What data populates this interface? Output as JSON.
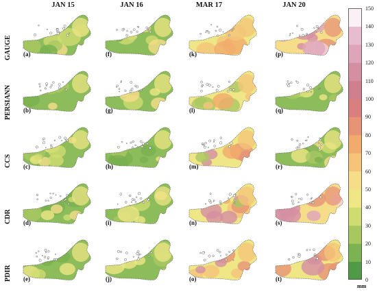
{
  "columns": [
    "JAN 15",
    "JAN 16",
    "MAR 17",
    "JAN 20"
  ],
  "rows": [
    "GAUGE",
    "PERSIANN",
    "CCS",
    "CDR",
    "PDIR"
  ],
  "panel_labels": [
    [
      "(a)",
      "(f)",
      "(k)",
      "(p)"
    ],
    [
      "(b)",
      "(g)",
      "(l)",
      "(q)"
    ],
    [
      "(c)",
      "(h)",
      "(m)",
      "(r)"
    ],
    [
      "(d)",
      "(i)",
      "(n)",
      "(s)"
    ],
    [
      "(e)",
      "(j)",
      "(o)",
      "(t)"
    ]
  ],
  "colorbar": {
    "unit": "mm",
    "ticks": [
      "150",
      "140",
      "130",
      "120",
      "110",
      "100",
      "90",
      "80",
      "70",
      "60",
      "50",
      "40",
      "30",
      "20",
      "10",
      "0"
    ],
    "colors": [
      "#4f9a45",
      "#7bb352",
      "#a7c861",
      "#cfdc72",
      "#efe685",
      "#f6dd8a",
      "#f5c47a",
      "#f1ab6c",
      "#e79375",
      "#d97f7f",
      "#cf7f8e",
      "#d48fa3",
      "#dea5ba",
      "#e8bccf",
      "#f2d5e3",
      "#fbf0f6"
    ]
  },
  "map_levels": [
    [
      "low",
      "low",
      "mid",
      "high"
    ],
    [
      "low",
      "low",
      "mid",
      "low"
    ],
    [
      "low",
      "low",
      "mid",
      "low"
    ],
    [
      "low",
      "low",
      "mid",
      "high"
    ],
    [
      "low",
      "low",
      "mid",
      "mid"
    ]
  ]
}
